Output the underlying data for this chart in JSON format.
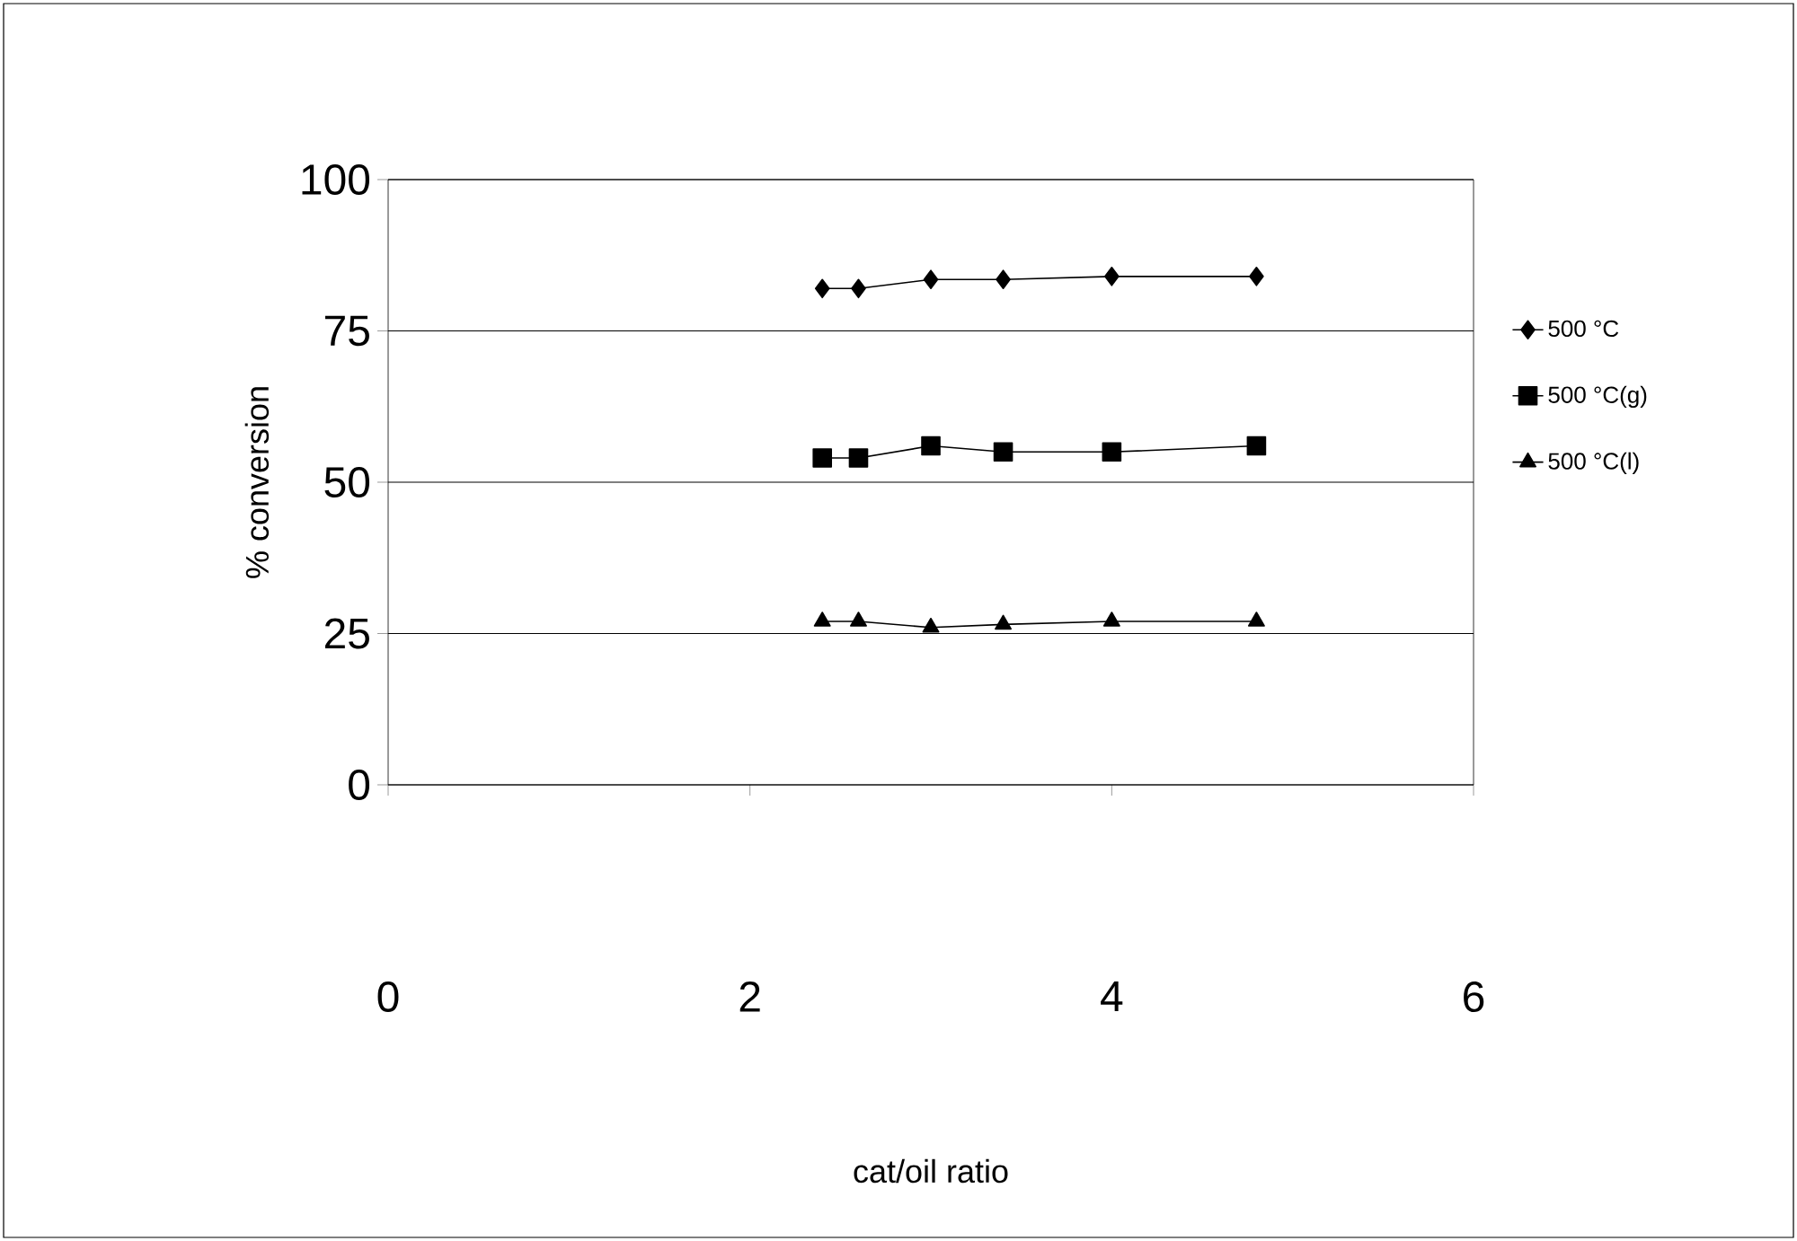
{
  "chart_data": {
    "type": "line",
    "xlabel": "cat/oil ratio",
    "ylabel": "% conversion",
    "x": [
      2.4,
      2.6,
      3.0,
      3.4,
      4.0,
      4.8
    ],
    "series": [
      {
        "name": "500 °C",
        "color": "#000000",
        "marker": "diamond",
        "values": [
          82,
          82,
          83.5,
          83.5,
          84,
          84
        ]
      },
      {
        "name": "500 °C(g)",
        "color": "#000000",
        "marker": "square",
        "values": [
          54,
          54,
          56,
          55,
          55,
          56
        ]
      },
      {
        "name": "500 °C(l)",
        "color": "#000000",
        "marker": "triangle",
        "values": [
          27,
          27,
          26,
          26.5,
          27,
          27
        ]
      }
    ],
    "xlim": [
      0,
      6
    ],
    "xticks": [
      0,
      2,
      4,
      6
    ],
    "ylim": [
      0,
      100
    ],
    "yticks": [
      0,
      25,
      50,
      75,
      100
    ],
    "grid": "y",
    "legend": "right",
    "line_style": "solid"
  }
}
